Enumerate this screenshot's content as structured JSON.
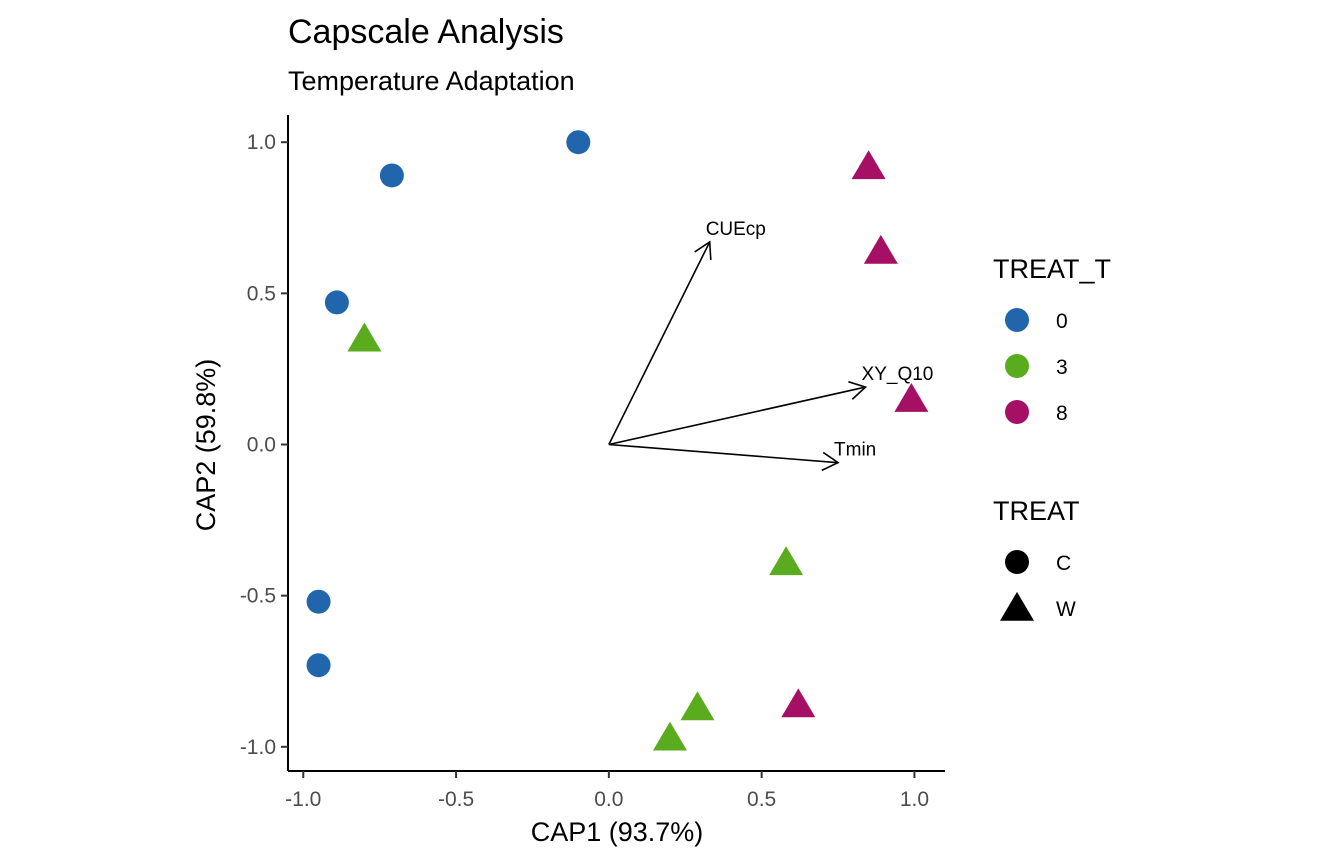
{
  "chart_data": {
    "type": "scatter",
    "title": "Capscale Analysis",
    "subtitle": "Temperature Adaptation",
    "xlabel": "CAP1 (93.7%)",
    "ylabel": "CAP2 (59.8%)",
    "xlim": [
      -1.05,
      1.1
    ],
    "ylim": [
      -1.08,
      1.09
    ],
    "xticks": [
      -1.0,
      -0.5,
      0.0,
      0.5,
      1.0
    ],
    "xtick_labels": [
      "-1.0",
      "-0.5",
      "0.0",
      "0.5",
      "1.0"
    ],
    "yticks": [
      -1.0,
      -0.5,
      0.0,
      0.5,
      1.0
    ],
    "ytick_labels": [
      "-1.0",
      "-0.5",
      "0.0",
      "0.5",
      "1.0"
    ],
    "grid": false,
    "points": [
      {
        "x": -0.1,
        "y": 1.0,
        "TREAT_T": "0",
        "TREAT": "C"
      },
      {
        "x": -0.71,
        "y": 0.89,
        "TREAT_T": "0",
        "TREAT": "C"
      },
      {
        "x": -0.89,
        "y": 0.47,
        "TREAT_T": "0",
        "TREAT": "C"
      },
      {
        "x": -0.95,
        "y": -0.52,
        "TREAT_T": "0",
        "TREAT": "C"
      },
      {
        "x": -0.95,
        "y": -0.73,
        "TREAT_T": "0",
        "TREAT": "C"
      },
      {
        "x": -0.8,
        "y": 0.35,
        "TREAT_T": "3",
        "TREAT": "W"
      },
      {
        "x": 0.58,
        "y": -0.39,
        "TREAT_T": "3",
        "TREAT": "W"
      },
      {
        "x": 0.29,
        "y": -0.87,
        "TREAT_T": "3",
        "TREAT": "W"
      },
      {
        "x": 0.2,
        "y": -0.97,
        "TREAT_T": "3",
        "TREAT": "W"
      },
      {
        "x": 0.85,
        "y": 0.92,
        "TREAT_T": "8",
        "TREAT": "W"
      },
      {
        "x": 0.89,
        "y": 0.64,
        "TREAT_T": "8",
        "TREAT": "W"
      },
      {
        "x": 0.99,
        "y": 0.15,
        "TREAT_T": "8",
        "TREAT": "W"
      },
      {
        "x": 0.62,
        "y": -0.86,
        "TREAT_T": "8",
        "TREAT": "W"
      }
    ],
    "vectors": [
      {
        "label": "CUEcp",
        "x": 0.33,
        "y": 0.67
      },
      {
        "label": "XY_Q10",
        "x": 0.84,
        "y": 0.19
      },
      {
        "label": "Tmin",
        "x": 0.75,
        "y": -0.06
      }
    ],
    "legends": [
      {
        "title": "TREAT_T",
        "kind": "color",
        "items": [
          {
            "label": "0",
            "color": "#2166ac"
          },
          {
            "label": "3",
            "color": "#5aab1e"
          },
          {
            "label": "8",
            "color": "#a50f64"
          }
        ]
      },
      {
        "title": "TREAT",
        "kind": "shape",
        "items": [
          {
            "label": "C",
            "shape": "circle"
          },
          {
            "label": "W",
            "shape": "triangle"
          }
        ]
      }
    ],
    "legend_position": "right"
  }
}
